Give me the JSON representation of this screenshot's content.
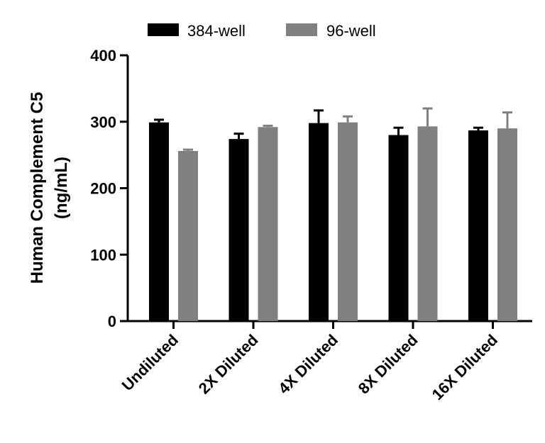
{
  "chart_data": {
    "type": "bar",
    "categories": [
      "Undiluted",
      "2X Diluted",
      "4X Diluted",
      "8X Diluted",
      "16X Diluted"
    ],
    "series": [
      {
        "name": "384-well",
        "color": "#000000",
        "values": [
          299,
          274,
          298,
          280,
          287
        ],
        "errors": [
          4,
          8,
          19,
          11,
          4
        ]
      },
      {
        "name": "96-well",
        "color": "#808080",
        "values": [
          256,
          292,
          299,
          293,
          290
        ],
        "errors": [
          2,
          2,
          9,
          27,
          24
        ]
      }
    ],
    "ylabel_line1": "Human Complement C5",
    "ylabel_line2": "(ng/mL)",
    "ylim": [
      0,
      400
    ],
    "yticks": [
      0,
      100,
      200,
      300,
      400
    ],
    "error_bars": "upper",
    "legend_position": "top",
    "grid": false
  }
}
